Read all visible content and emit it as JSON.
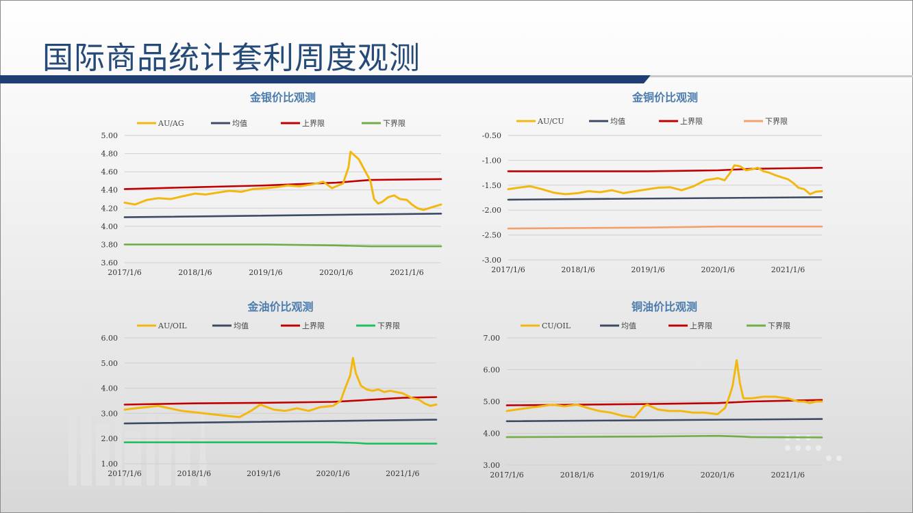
{
  "page": {
    "title": "国际商品统计套利周度观测"
  },
  "colors": {
    "title": "#264a78",
    "band": "#1f3f73",
    "chart_title": "#4b7cad",
    "grid": "#cfcfcf"
  },
  "chart_data": [
    {
      "type": "line",
      "title": "金银价比观测",
      "legend_position": "top",
      "grid": true,
      "ylim": [
        3.6,
        5.0
      ],
      "yticks": [
        "5.00",
        "4.80",
        "4.60",
        "4.40",
        "4.20",
        "4.00",
        "3.80",
        "3.60"
      ],
      "xticks": [
        "2017/1/6",
        "2018/1/6",
        "2019/1/6",
        "2020/1/6",
        "2021/1/6"
      ],
      "x_range": [
        "2017/1/6",
        "2021/7/2"
      ],
      "series": [
        {
          "name": "AU/AG",
          "color": "#f2b80f",
          "points": [
            [
              "2017/1/6",
              4.26
            ],
            [
              "2017/3/1",
              4.24
            ],
            [
              "2017/5/1",
              4.29
            ],
            [
              "2017/7/1",
              4.31
            ],
            [
              "2017/9/1",
              4.3
            ],
            [
              "2017/11/1",
              4.33
            ],
            [
              "2018/1/6",
              4.36
            ],
            [
              "2018/3/1",
              4.35
            ],
            [
              "2018/5/1",
              4.37
            ],
            [
              "2018/7/1",
              4.39
            ],
            [
              "2018/9/1",
              4.38
            ],
            [
              "2018/11/1",
              4.41
            ],
            [
              "2019/1/6",
              4.42
            ],
            [
              "2019/3/1",
              4.43
            ],
            [
              "2019/5/1",
              4.45
            ],
            [
              "2019/7/1",
              4.44
            ],
            [
              "2019/9/1",
              4.46
            ],
            [
              "2019/11/1",
              4.49
            ],
            [
              "2019/12/15",
              4.42
            ],
            [
              "2020/1/6",
              4.44
            ],
            [
              "2020/2/10",
              4.47
            ],
            [
              "2020/3/10",
              4.65
            ],
            [
              "2020/3/20",
              4.82
            ],
            [
              "2020/4/10",
              4.78
            ],
            [
              "2020/5/1",
              4.74
            ],
            [
              "2020/6/1",
              4.62
            ],
            [
              "2020/7/1",
              4.5
            ],
            [
              "2020/7/20",
              4.3
            ],
            [
              "2020/8/10",
              4.25
            ],
            [
              "2020/9/1",
              4.27
            ],
            [
              "2020/10/1",
              4.32
            ],
            [
              "2020/11/1",
              4.34
            ],
            [
              "2020/12/1",
              4.3
            ],
            [
              "2021/1/6",
              4.29
            ],
            [
              "2021/2/1",
              4.24
            ],
            [
              "2021/3/1",
              4.2
            ],
            [
              "2021/4/1",
              4.18
            ],
            [
              "2021/5/1",
              4.2
            ],
            [
              "2021/6/1",
              4.22
            ],
            [
              "2021/7/2",
              4.24
            ]
          ]
        },
        {
          "name": "均值",
          "color": "#3c4a63",
          "points": [
            [
              "2017/1/6",
              4.1
            ],
            [
              "2021/7/2",
              4.14
            ]
          ]
        },
        {
          "name": "上界限",
          "color": "#c00000",
          "points": [
            [
              "2017/1/6",
              4.41
            ],
            [
              "2018/1/6",
              4.43
            ],
            [
              "2019/1/6",
              4.45
            ],
            [
              "2020/1/6",
              4.48
            ],
            [
              "2020/7/1",
              4.51
            ],
            [
              "2021/7/2",
              4.52
            ]
          ]
        },
        {
          "name": "下界限",
          "color": "#70ad47",
          "points": [
            [
              "2017/1/6",
              3.8
            ],
            [
              "2019/1/6",
              3.8
            ],
            [
              "2020/1/6",
              3.79
            ],
            [
              "2020/7/1",
              3.78
            ],
            [
              "2021/7/2",
              3.78
            ]
          ]
        }
      ]
    },
    {
      "type": "line",
      "title": "金铜价比观测",
      "legend_position": "top",
      "grid": true,
      "ylim": [
        -3.0,
        -0.5
      ],
      "yticks": [
        "-0.50",
        "-1.00",
        "-1.50",
        "-2.00",
        "-2.50",
        "-3.00"
      ],
      "xticks": [
        "2017/1/6",
        "2018/1/6",
        "2019/1/6",
        "2020/1/6",
        "2021/1/6"
      ],
      "x_range": [
        "2017/1/6",
        "2021/7/2"
      ],
      "series": [
        {
          "name": "AU/CU",
          "color": "#f2b80f",
          "points": [
            [
              "2017/1/6",
              -1.58
            ],
            [
              "2017/3/1",
              -1.55
            ],
            [
              "2017/5/1",
              -1.52
            ],
            [
              "2017/7/1",
              -1.58
            ],
            [
              "2017/9/1",
              -1.65
            ],
            [
              "2017/11/1",
              -1.68
            ],
            [
              "2018/1/6",
              -1.66
            ],
            [
              "2018/3/1",
              -1.62
            ],
            [
              "2018/5/1",
              -1.64
            ],
            [
              "2018/7/1",
              -1.6
            ],
            [
              "2018/9/1",
              -1.66
            ],
            [
              "2018/11/1",
              -1.62
            ],
            [
              "2019/1/6",
              -1.58
            ],
            [
              "2019/3/1",
              -1.55
            ],
            [
              "2019/5/1",
              -1.54
            ],
            [
              "2019/7/1",
              -1.6
            ],
            [
              "2019/9/1",
              -1.52
            ],
            [
              "2019/11/1",
              -1.4
            ],
            [
              "2020/1/6",
              -1.36
            ],
            [
              "2020/2/10",
              -1.4
            ],
            [
              "2020/3/10",
              -1.25
            ],
            [
              "2020/4/1",
              -1.1
            ],
            [
              "2020/5/1",
              -1.12
            ],
            [
              "2020/6/1",
              -1.2
            ],
            [
              "2020/7/1",
              -1.18
            ],
            [
              "2020/8/1",
              -1.15
            ],
            [
              "2020/9/1",
              -1.22
            ],
            [
              "2020/10/1",
              -1.25
            ],
            [
              "2020/11/1",
              -1.3
            ],
            [
              "2021/1/6",
              -1.38
            ],
            [
              "2021/2/1",
              -1.45
            ],
            [
              "2021/3/1",
              -1.55
            ],
            [
              "2021/4/1",
              -1.58
            ],
            [
              "2021/5/1",
              -1.68
            ],
            [
              "2021/6/1",
              -1.63
            ],
            [
              "2021/7/2",
              -1.62
            ]
          ]
        },
        {
          "name": "均值",
          "color": "#3c4a63",
          "points": [
            [
              "2017/1/6",
              -1.79
            ],
            [
              "2021/7/2",
              -1.74
            ]
          ]
        },
        {
          "name": "上界限",
          "color": "#c00000",
          "points": [
            [
              "2017/1/6",
              -1.22
            ],
            [
              "2019/1/6",
              -1.22
            ],
            [
              "2020/1/6",
              -1.2
            ],
            [
              "2020/7/1",
              -1.17
            ],
            [
              "2021/7/2",
              -1.15
            ]
          ]
        },
        {
          "name": "下界限",
          "color": "#f4a06a",
          "points": [
            [
              "2017/1/6",
              -2.37
            ],
            [
              "2019/1/6",
              -2.35
            ],
            [
              "2020/1/6",
              -2.33
            ],
            [
              "2021/7/2",
              -2.33
            ]
          ]
        }
      ]
    },
    {
      "type": "line",
      "title": "金油价比观测",
      "legend_position": "top",
      "grid": true,
      "ylim": [
        1.0,
        6.0
      ],
      "yticks": [
        "6.00",
        "5.00",
        "4.00",
        "3.00",
        "2.00",
        "1.00"
      ],
      "xticks": [
        "2017/1/6",
        "2018/1/6",
        "2019/1/6",
        "2020/1/6",
        "2021/1/6"
      ],
      "x_range": [
        "2017/1/6",
        "2021/7/2"
      ],
      "series": [
        {
          "name": "AU/OIL",
          "color": "#f2b80f",
          "points": [
            [
              "2017/1/6",
              3.15
            ],
            [
              "2017/3/1",
              3.2
            ],
            [
              "2017/5/1",
              3.25
            ],
            [
              "2017/7/1",
              3.3
            ],
            [
              "2017/9/1",
              3.2
            ],
            [
              "2017/11/1",
              3.1
            ],
            [
              "2018/1/6",
              3.05
            ],
            [
              "2018/3/1",
              3.0
            ],
            [
              "2018/5/1",
              2.95
            ],
            [
              "2018/7/1",
              2.9
            ],
            [
              "2018/9/1",
              2.85
            ],
            [
              "2018/11/1",
              3.1
            ],
            [
              "2018/12/20",
              3.35
            ],
            [
              "2019/1/6",
              3.3
            ],
            [
              "2019/3/1",
              3.15
            ],
            [
              "2019/5/1",
              3.1
            ],
            [
              "2019/7/1",
              3.2
            ],
            [
              "2019/9/1",
              3.1
            ],
            [
              "2019/11/1",
              3.25
            ],
            [
              "2020/1/6",
              3.3
            ],
            [
              "2020/2/15",
              3.5
            ],
            [
              "2020/3/10",
              4.0
            ],
            [
              "2020/4/5",
              4.5
            ],
            [
              "2020/4/20",
              5.2
            ],
            [
              "2020/5/5",
              4.6
            ],
            [
              "2020/6/1",
              4.1
            ],
            [
              "2020/7/1",
              3.95
            ],
            [
              "2020/8/1",
              3.9
            ],
            [
              "2020/9/1",
              3.95
            ],
            [
              "2020/10/1",
              3.85
            ],
            [
              "2020/11/1",
              3.9
            ],
            [
              "2021/1/6",
              3.8
            ],
            [
              "2021/2/1",
              3.7
            ],
            [
              "2021/3/1",
              3.6
            ],
            [
              "2021/4/1",
              3.55
            ],
            [
              "2021/5/1",
              3.4
            ],
            [
              "2021/6/1",
              3.3
            ],
            [
              "2021/7/2",
              3.35
            ]
          ]
        },
        {
          "name": "均值",
          "color": "#3c4a63",
          "points": [
            [
              "2017/1/6",
              2.6
            ],
            [
              "2021/7/2",
              2.75
            ]
          ]
        },
        {
          "name": "上界限",
          "color": "#c00000",
          "points": [
            [
              "2017/1/6",
              3.35
            ],
            [
              "2018/1/6",
              3.4
            ],
            [
              "2019/1/6",
              3.42
            ],
            [
              "2020/1/6",
              3.46
            ],
            [
              "2020/6/1",
              3.52
            ],
            [
              "2021/1/6",
              3.62
            ],
            [
              "2021/7/2",
              3.65
            ]
          ]
        },
        {
          "name": "下界限",
          "color": "#1fbf5f",
          "points": [
            [
              "2017/1/6",
              1.85
            ],
            [
              "2019/1/6",
              1.85
            ],
            [
              "2020/1/6",
              1.85
            ],
            [
              "2020/5/1",
              1.83
            ],
            [
              "2020/7/1",
              1.8
            ],
            [
              "2021/7/2",
              1.8
            ]
          ]
        }
      ]
    },
    {
      "type": "line",
      "title": "铜油价比观测",
      "legend_position": "top",
      "grid": true,
      "ylim": [
        3.0,
        7.0
      ],
      "yticks": [
        "7.00",
        "6.00",
        "5.00",
        "4.00",
        "3.00"
      ],
      "xticks": [
        "2017/1/6",
        "2018/1/6",
        "2019/1/6",
        "2020/1/6",
        "2021/1/6"
      ],
      "x_range": [
        "2017/1/6",
        "2021/7/2"
      ],
      "series": [
        {
          "name": "CU/OIL",
          "color": "#f2b80f",
          "points": [
            [
              "2017/1/6",
              4.7
            ],
            [
              "2017/3/1",
              4.75
            ],
            [
              "2017/5/1",
              4.8
            ],
            [
              "2017/7/1",
              4.85
            ],
            [
              "2017/9/1",
              4.9
            ],
            [
              "2017/11/1",
              4.85
            ],
            [
              "2018/1/6",
              4.9
            ],
            [
              "2018/3/1",
              4.8
            ],
            [
              "2018/5/1",
              4.7
            ],
            [
              "2018/7/1",
              4.65
            ],
            [
              "2018/9/1",
              4.55
            ],
            [
              "2018/11/1",
              4.5
            ],
            [
              "2018/12/20",
              4.85
            ],
            [
              "2019/1/6",
              4.9
            ],
            [
              "2019/3/1",
              4.75
            ],
            [
              "2019/5/1",
              4.7
            ],
            [
              "2019/7/1",
              4.7
            ],
            [
              "2019/9/1",
              4.65
            ],
            [
              "2019/11/1",
              4.65
            ],
            [
              "2020/1/6",
              4.6
            ],
            [
              "2020/2/15",
              4.8
            ],
            [
              "2020/3/10",
              5.2
            ],
            [
              "2020/3/25",
              5.5
            ],
            [
              "2020/4/15",
              6.3
            ],
            [
              "2020/5/1",
              5.6
            ],
            [
              "2020/5/20",
              5.1
            ],
            [
              "2020/7/1",
              5.1
            ],
            [
              "2020/9/1",
              5.15
            ],
            [
              "2020/11/1",
              5.15
            ],
            [
              "2021/1/6",
              5.1
            ],
            [
              "2021/2/1",
              5.05
            ],
            [
              "2021/3/1",
              5.0
            ],
            [
              "2021/4/1",
              5.0
            ],
            [
              "2021/5/1",
              4.95
            ],
            [
              "2021/6/1",
              5.0
            ],
            [
              "2021/7/2",
              5.0
            ]
          ]
        },
        {
          "name": "均值",
          "color": "#3c4a63",
          "points": [
            [
              "2017/1/6",
              4.38
            ],
            [
              "2021/7/2",
              4.45
            ]
          ]
        },
        {
          "name": "上界限",
          "color": "#c00000",
          "points": [
            [
              "2017/1/6",
              4.88
            ],
            [
              "2019/1/6",
              4.92
            ],
            [
              "2020/1/6",
              4.95
            ],
            [
              "2020/7/1",
              5.0
            ],
            [
              "2021/7/2",
              5.05
            ]
          ]
        },
        {
          "name": "下界限",
          "color": "#70ad47",
          "points": [
            [
              "2017/1/6",
              3.88
            ],
            [
              "2019/1/6",
              3.9
            ],
            [
              "2020/1/6",
              3.92
            ],
            [
              "2020/5/1",
              3.9
            ],
            [
              "2020/7/1",
              3.88
            ],
            [
              "2021/7/2",
              3.87
            ]
          ]
        }
      ]
    }
  ]
}
